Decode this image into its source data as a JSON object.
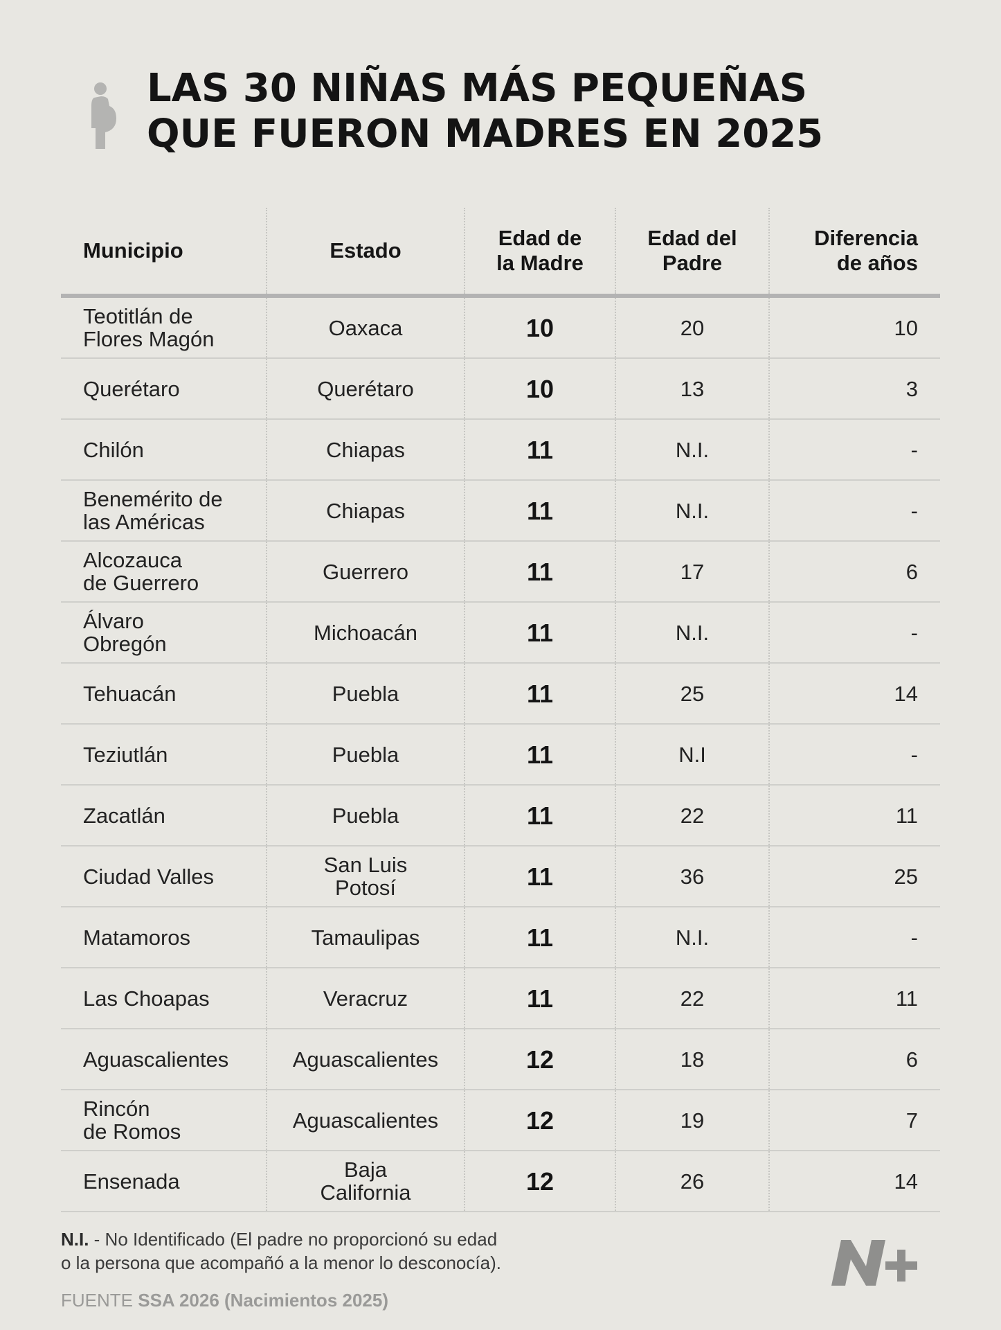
{
  "title": {
    "line1": "LAS 30 NIÑAS MÁS PEQUEÑAS",
    "line2": "QUE FUERON MADRES EN 2025"
  },
  "icons": {
    "title_icon": "pregnant-figure-icon",
    "brand_logo": "n-plus-logo"
  },
  "colors": {
    "background": "#e8e7e2",
    "icon": "#b4b4b2",
    "logo": "#8f8f8d"
  },
  "table": {
    "headers": {
      "municipio": [
        "Municipio"
      ],
      "estado": [
        "Estado"
      ],
      "madre": [
        "Edad de",
        "la Madre"
      ],
      "padre": [
        "Edad del",
        "Padre"
      ],
      "diferencia": [
        "Diferencia",
        "de años"
      ]
    },
    "rows": [
      {
        "municipio": [
          "Teotitlán de",
          "Flores Magón"
        ],
        "estado": [
          "Oaxaca"
        ],
        "madre": "10",
        "padre": "20",
        "diferencia": "10"
      },
      {
        "municipio": [
          "Querétaro"
        ],
        "estado": [
          "Querétaro"
        ],
        "madre": "10",
        "padre": "13",
        "diferencia": "3"
      },
      {
        "municipio": [
          "Chilón"
        ],
        "estado": [
          "Chiapas"
        ],
        "madre": "11",
        "padre": "N.I.",
        "diferencia": "-"
      },
      {
        "municipio": [
          "Benemérito de",
          "las Américas"
        ],
        "estado": [
          "Chiapas"
        ],
        "madre": "11",
        "padre": "N.I.",
        "diferencia": "-"
      },
      {
        "municipio": [
          "Alcozauca",
          "de Guerrero"
        ],
        "estado": [
          "Guerrero"
        ],
        "madre": "11",
        "padre": "17",
        "diferencia": "6"
      },
      {
        "municipio": [
          "Álvaro",
          "Obregón"
        ],
        "estado": [
          "Michoacán"
        ],
        "madre": "11",
        "padre": "N.I.",
        "diferencia": "-"
      },
      {
        "municipio": [
          "Tehuacán"
        ],
        "estado": [
          "Puebla"
        ],
        "madre": "11",
        "padre": "25",
        "diferencia": "14"
      },
      {
        "municipio": [
          "Teziutlán"
        ],
        "estado": [
          "Puebla"
        ],
        "madre": "11",
        "padre": "N.I",
        "diferencia": "-"
      },
      {
        "municipio": [
          "Zacatlán"
        ],
        "estado": [
          "Puebla"
        ],
        "madre": "11",
        "padre": "22",
        "diferencia": "11"
      },
      {
        "municipio": [
          "Ciudad Valles"
        ],
        "estado": [
          "San Luis",
          "Potosí"
        ],
        "madre": "11",
        "padre": "36",
        "diferencia": "25"
      },
      {
        "municipio": [
          "Matamoros"
        ],
        "estado": [
          "Tamaulipas"
        ],
        "madre": "11",
        "padre": "N.I.",
        "diferencia": "-"
      },
      {
        "municipio": [
          "Las Choapas"
        ],
        "estado": [
          "Veracruz"
        ],
        "madre": "11",
        "padre": "22",
        "diferencia": "11"
      },
      {
        "municipio": [
          "Aguascalientes"
        ],
        "estado": [
          "Aguascalientes"
        ],
        "madre": "12",
        "padre": "18",
        "diferencia": "6"
      },
      {
        "municipio": [
          "Rincón",
          "de Romos"
        ],
        "estado": [
          "Aguascalientes"
        ],
        "madre": "12",
        "padre": "19",
        "diferencia": "7"
      },
      {
        "municipio": [
          "Ensenada"
        ],
        "estado": [
          "Baja",
          "California"
        ],
        "madre": "12",
        "padre": "26",
        "diferencia": "14"
      }
    ]
  },
  "footnote": {
    "abbr": "N.I.",
    "line1": " - No Identificado (El padre no proporcionó su edad",
    "line2": "o la persona que acompañó a la menor lo desconocía)."
  },
  "source": {
    "prefix": "FUENTE ",
    "name": "SSA 2026 (Nacimientos 2025)"
  }
}
